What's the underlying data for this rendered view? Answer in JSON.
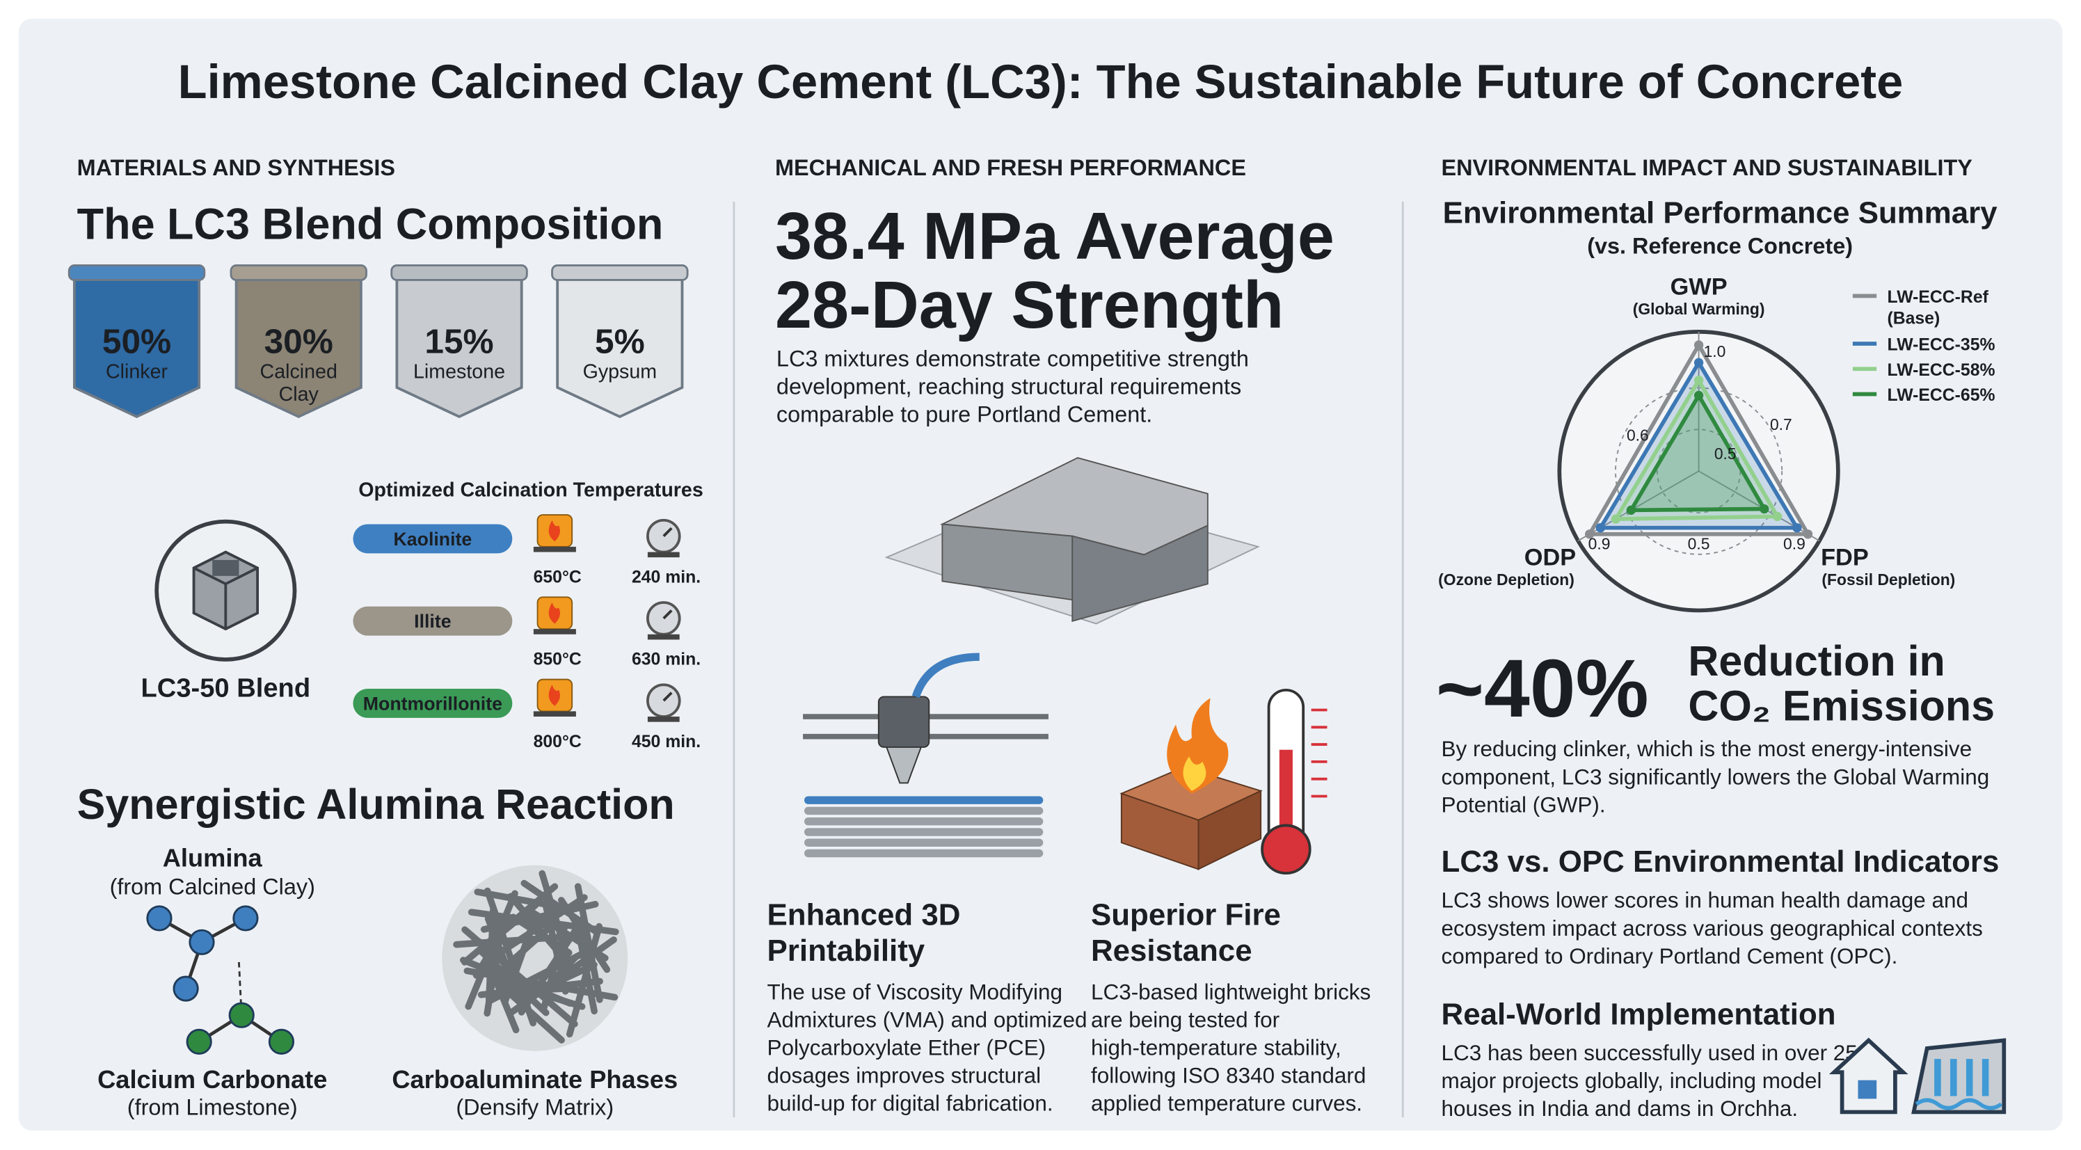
{
  "title": "Limestone Calcined Clay Cement (LC3): The Sustainable Future of Concrete",
  "materials": {
    "heading": "MATERIALS AND SYNTHESIS",
    "title": "The LC3 Blend Composition",
    "blend": [
      {
        "percent": "50%",
        "label": [
          "Clinker"
        ]
      },
      {
        "percent": "30%",
        "label": [
          "Calcined",
          "Clay"
        ]
      },
      {
        "percent": "15%",
        "label": [
          "Limestone"
        ]
      },
      {
        "percent": "5%",
        "label": [
          "Gypsum"
        ]
      }
    ],
    "calcination_title": "Optimized Calcination Temperatures",
    "clays": [
      {
        "name": "Kaolinite",
        "temperature": "650°C",
        "time": "240 min."
      },
      {
        "name": "Illite",
        "temperature": "850°C",
        "time": "630 min."
      },
      {
        "name": "Montmorillonite",
        "temperature": "800°C",
        "time": "450 min."
      }
    ],
    "blend_label": "LC3-50 Blend",
    "reaction_title": "Synergistic Alumina Reaction",
    "alumina": {
      "title": "Alumina",
      "sub": "(from Calcined Clay)"
    },
    "calcium": {
      "title": "Calcium Carbonate",
      "sub": "(from Limestone)"
    },
    "phases": {
      "title": "Carboaluminate Phases",
      "sub": "(Densify Matrix)"
    }
  },
  "performance": {
    "heading": "MECHANICAL AND FRESH PERFORMANCE",
    "headline": [
      "38.4 MPa Average",
      "28-Day Strength"
    ],
    "text": [
      "LC3 mixtures demonstrate competitive strength",
      "development, reaching structural requirements",
      "comparable to pure Portland Cement."
    ],
    "printability": {
      "title": [
        "Enhanced 3D",
        "Printability"
      ],
      "text": [
        "The use of Viscosity Modifying",
        "Admixtures (VMA) and optimized",
        "Polycarboxylate Ether (PCE)",
        "dosages improves structural",
        "build-up for digital fabrication."
      ]
    },
    "fire": {
      "title": [
        "Superior Fire",
        "Resistance"
      ],
      "text": [
        "LC3-based lightweight bricks",
        "are being tested for",
        "high-temperature stability,",
        "following ISO 8340 standard",
        "applied temperature curves."
      ]
    }
  },
  "environment": {
    "heading": "ENVIRONMENTAL IMPACT AND SUSTAINABILITY",
    "radar": {
      "type": "radar",
      "title": "Environmental Performance Summary",
      "subtitle": "(vs. Reference Concrete)",
      "axes": [
        {
          "name": "GWP",
          "sub": "(Global Warming)"
        },
        {
          "name": "FDP",
          "sub": "(Fossil Depletion)"
        },
        {
          "name": "ODP",
          "sub": "(Ozone Depletion)"
        }
      ],
      "rlim": [
        0,
        1
      ],
      "tick_labels": [
        {
          "value": 1,
          "label": "1.0"
        },
        0.7,
        0.5,
        0.6,
        0.9,
        0.5,
        0.9
      ],
      "series": [
        {
          "name": "LW-ECC-Ref",
          "note": "(Base)",
          "color": "#8a8d90",
          "values": [
            1.0,
            1.0,
            1.0
          ]
        },
        {
          "name": "LW-ECC-35%",
          "color": "#3d78b5",
          "values": [
            0.86,
            0.9,
            0.9
          ]
        },
        {
          "name": "LW-ECC-58%",
          "color": "#93d08e",
          "values": [
            0.72,
            0.72,
            0.76
          ]
        },
        {
          "name": "LW-ECC-65%",
          "color": "#2f8a3f",
          "values": [
            0.6,
            0.6,
            0.62
          ]
        }
      ]
    },
    "reduction": {
      "value": "~40%",
      "text": [
        "Reduction in",
        "CO₂ Emissions"
      ]
    },
    "reduction_text": [
      "By reducing clinker, which is the most energy-intensive",
      "component, LC3 significantly lowers the Global Warming",
      "Potential (GWP)."
    ],
    "indicators": {
      "title": "LC3 vs. OPC Environmental Indicators",
      "text": [
        "LC3 shows lower scores in human health damage and",
        "ecosystem impact across various geographical contexts",
        "compared to Ordinary Portland Cement (OPC)."
      ]
    },
    "implementation": {
      "title": "Real-World Implementation",
      "text": [
        "LC3 has been successfully used in over 25",
        "major projects globally, including model",
        "houses in India and dams in Orchha."
      ]
    }
  }
}
